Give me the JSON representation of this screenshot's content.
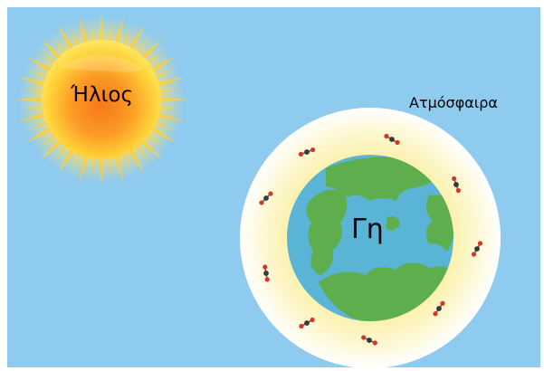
{
  "labels": {
    "sun": "Ήλιος",
    "atmosphere": "Ατμόσφαιρα",
    "earth": "Γη"
  },
  "colors": {
    "sky": "#8ecbef",
    "sun_core": "#f77a1c",
    "sun_edge": "#ffe14a",
    "sun_rays": "#ffcf3a",
    "atmosphere_outer": "#ffffff",
    "atmosphere_inner": "#fdf5c7",
    "ocean": "#5ab4d6",
    "land": "#5fae4e",
    "molecule_carbon": "#3a3a3a",
    "molecule_oxygen": "#d9342b"
  },
  "icons": {
    "sun": "sun-icon",
    "earth": "earth-icon",
    "molecule": "co2-molecule-icon"
  }
}
